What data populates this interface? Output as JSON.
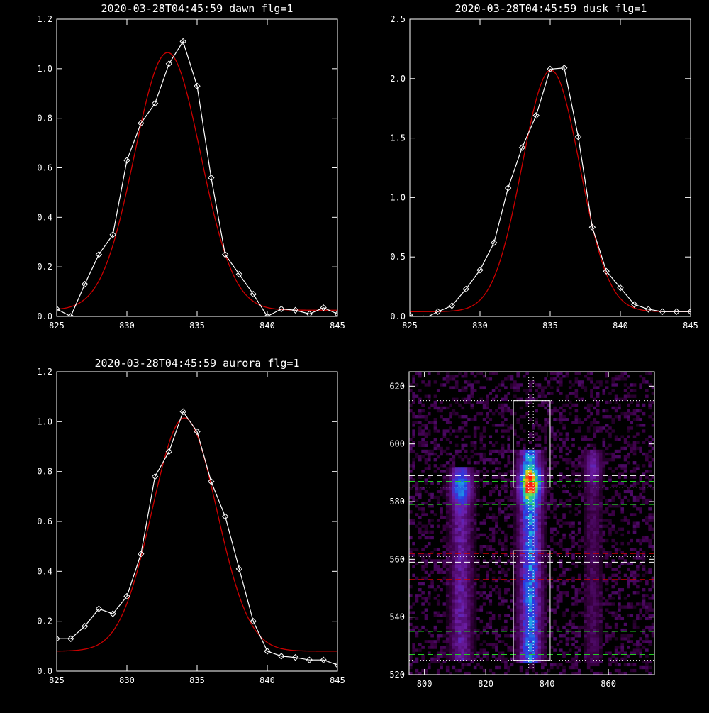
{
  "chart_data": [
    {
      "type": "line",
      "title": "2020-03-28T04:45:59 dawn flg=1",
      "xlim": [
        825,
        845
      ],
      "ylim": [
        0,
        1.2
      ],
      "xticks": [
        825,
        830,
        835,
        840,
        845
      ],
      "yticks": [
        0.0,
        0.2,
        0.4,
        0.6,
        0.8,
        1.0,
        1.2
      ],
      "ytick_labels": [
        "0.0",
        "0.2",
        "0.4",
        "0.6",
        "0.8",
        "1.0",
        "1.2"
      ],
      "series": [
        {
          "kind": "data",
          "color": "#ffffff",
          "marker": "diamond",
          "x": [
            825,
            826,
            827,
            828,
            829,
            830,
            831,
            832,
            833,
            834,
            835,
            836,
            837,
            838,
            839,
            840,
            841,
            842,
            843,
            844,
            845
          ],
          "y": [
            0.03,
            0.0,
            0.13,
            0.25,
            0.33,
            0.63,
            0.78,
            0.86,
            1.02,
            1.11,
            0.93,
            0.56,
            0.25,
            0.17,
            0.09,
            0.0,
            0.03,
            0.025,
            0.01,
            0.035,
            0.01
          ]
        },
        {
          "kind": "fit",
          "color": "#cc0000",
          "amp": 1.04,
          "center": 832.9,
          "sigma": 2.35,
          "offset": 0.025
        }
      ]
    },
    {
      "type": "line",
      "title": "2020-03-28T04:45:59 dusk flg=1",
      "xlim": [
        825,
        845
      ],
      "ylim": [
        0,
        2.5
      ],
      "xticks": [
        825,
        830,
        835,
        840,
        845
      ],
      "yticks": [
        0.0,
        0.5,
        1.0,
        1.5,
        2.0,
        2.5
      ],
      "ytick_labels": [
        "0.0",
        "0.5",
        "1.0",
        "1.5",
        "2.0",
        "2.5"
      ],
      "series": [
        {
          "kind": "data",
          "color": "#ffffff",
          "marker": "diamond",
          "x": [
            825,
            826,
            827,
            828,
            829,
            830,
            831,
            832,
            833,
            834,
            835,
            836,
            837,
            838,
            839,
            840,
            841,
            842,
            843,
            844,
            845
          ],
          "y": [
            0.01,
            -0.02,
            0.04,
            0.09,
            0.23,
            0.39,
            0.62,
            1.08,
            1.42,
            1.69,
            2.08,
            2.09,
            1.51,
            0.75,
            0.38,
            0.24,
            0.1,
            0.06,
            0.04,
            0.04,
            0.04
          ]
        },
        {
          "kind": "fit",
          "color": "#cc0000",
          "amp": 2.03,
          "center": 835.05,
          "sigma": 2.05,
          "offset": 0.04
        }
      ]
    },
    {
      "type": "line",
      "title": "2020-03-28T04:45:59 aurora flg=1",
      "xlim": [
        825,
        845
      ],
      "ylim": [
        0,
        1.2
      ],
      "xticks": [
        825,
        830,
        835,
        840,
        845
      ],
      "yticks": [
        0.0,
        0.2,
        0.4,
        0.6,
        0.8,
        1.0,
        1.2
      ],
      "ytick_labels": [
        "0.0",
        "0.2",
        "0.4",
        "0.6",
        "0.8",
        "1.0",
        "1.2"
      ],
      "series": [
        {
          "kind": "data",
          "color": "#ffffff",
          "marker": "diamond",
          "x": [
            825,
            826,
            827,
            828,
            829,
            830,
            831,
            832,
            833,
            834,
            835,
            836,
            837,
            838,
            839,
            840,
            841,
            842,
            843,
            844,
            845
          ],
          "y": [
            0.13,
            0.13,
            0.18,
            0.25,
            0.23,
            0.3,
            0.47,
            0.78,
            0.88,
            1.04,
            0.96,
            0.76,
            0.62,
            0.41,
            0.2,
            0.08,
            0.06,
            0.055,
            0.045,
            0.045,
            0.025
          ]
        },
        {
          "kind": "fit",
          "color": "#cc0000",
          "amp": 0.935,
          "center": 834.1,
          "sigma": 2.3,
          "offset": 0.08
        }
      ]
    },
    {
      "type": "heatmap",
      "title": "",
      "xlim": [
        795,
        875
      ],
      "ylim": [
        520,
        625
      ],
      "xticks": [
        800,
        820,
        840,
        860
      ],
      "yticks": [
        520,
        540,
        560,
        580,
        600,
        620
      ],
      "streaks": [
        {
          "x": 812,
          "width": 5,
          "y_range": [
            525,
            592
          ],
          "peak": 0.55,
          "hot_y": 585
        },
        {
          "x": 834.5,
          "width": 5,
          "y_range": [
            524,
            598
          ],
          "peak": 1.0,
          "hot_y": 586
        },
        {
          "x": 855,
          "width": 4,
          "y_range": [
            524,
            598
          ],
          "peak": 0.3,
          "hot_y": 592
        }
      ],
      "boxes": [
        {
          "x": [
            829,
            841
          ],
          "y": [
            585,
            615
          ]
        },
        {
          "x": [
            829,
            841
          ],
          "y": [
            525,
            563
          ]
        },
        {
          "x": [
            833.5,
            836
          ],
          "y": [
            563,
            585
          ]
        }
      ],
      "hlines": [
        {
          "y": 615,
          "color": "#ffffff",
          "style": "dotted"
        },
        {
          "y": 589,
          "color": "#ffffff",
          "style": "dashed"
        },
        {
          "y": 587,
          "color": "#22cc22",
          "style": "dashed"
        },
        {
          "y": 585,
          "color": "#ffffff",
          "style": "dotted"
        },
        {
          "y": 579,
          "color": "#22cc22",
          "style": "dashed"
        },
        {
          "y": 562,
          "color": "#cc0000",
          "style": "dashed"
        },
        {
          "y": 561,
          "color": "#ffffff",
          "style": "dotted"
        },
        {
          "y": 559,
          "color": "#ffffff",
          "style": "dashed"
        },
        {
          "y": 557,
          "color": "#ffffff",
          "style": "dotted"
        },
        {
          "y": 553,
          "color": "#cc0000",
          "style": "dashed"
        },
        {
          "y": 535,
          "color": "#22cc22",
          "style": "dashed"
        },
        {
          "y": 527,
          "color": "#22cc22",
          "style": "dashed"
        },
        {
          "y": 525,
          "color": "#ffffff",
          "style": "dotted"
        }
      ],
      "vlines": [
        {
          "x": 834,
          "color": "#ffffff",
          "style": "dotted"
        },
        {
          "x": 835.5,
          "color": "#ffffff",
          "style": "dotted"
        }
      ]
    }
  ]
}
